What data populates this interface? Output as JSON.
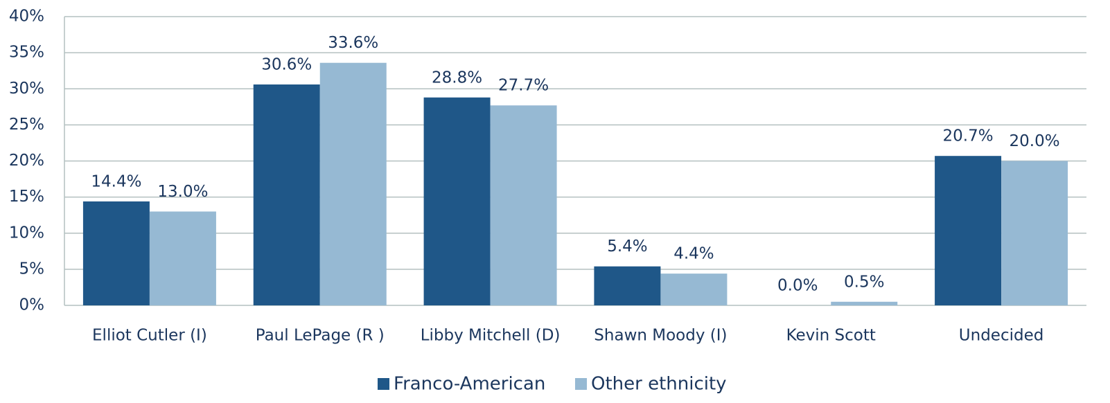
{
  "chart_data": {
    "type": "bar",
    "categories": [
      "Elliot Cutler (I)",
      "Paul LePage (R )",
      "Libby Mitchell (D)",
      "Shawn Moody (I)",
      "Kevin Scott",
      "Undecided"
    ],
    "series": [
      {
        "name": "Franco-American",
        "color": "#1f5788",
        "values": [
          14.4,
          30.6,
          28.8,
          5.4,
          0.0,
          20.7
        ],
        "value_labels": [
          "14.4%",
          "30.6%",
          "28.8%",
          "5.4%",
          "0.0%",
          "20.7%"
        ]
      },
      {
        "name": "Other ethnicity",
        "color": "#96b9d3",
        "values": [
          13.0,
          33.6,
          27.7,
          4.4,
          0.5,
          20.0
        ],
        "value_labels": [
          "13.0%",
          "33.6%",
          "27.7%",
          "4.4%",
          "0.5%",
          "20.0%"
        ]
      }
    ],
    "ylim": [
      0,
      40
    ],
    "yticks": [
      {
        "value": 0,
        "label": "0%"
      },
      {
        "value": 5,
        "label": "5%"
      },
      {
        "value": 10,
        "label": "10%"
      },
      {
        "value": 15,
        "label": "15%"
      },
      {
        "value": 20,
        "label": "20%"
      },
      {
        "value": 25,
        "label": "25%"
      },
      {
        "value": 30,
        "label": "30%"
      },
      {
        "value": 35,
        "label": "35%"
      },
      {
        "value": 40,
        "label": "40%"
      }
    ],
    "grid": true,
    "legend": "bottom"
  }
}
